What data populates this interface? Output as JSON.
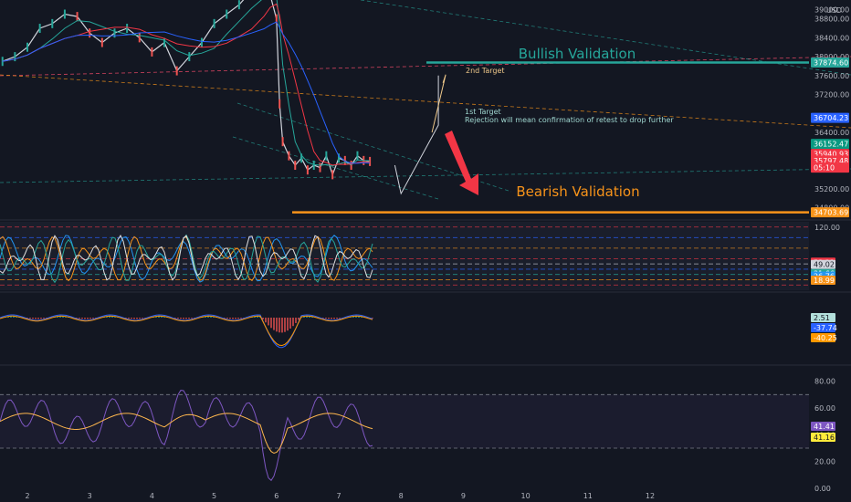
{
  "chart_data": {
    "type": "line",
    "currency": "USD",
    "colors": {
      "background": "#131722",
      "bullish": "#26a69a",
      "bearish": "#f7931a",
      "price_tag_red": "#f23645",
      "price_tag_blue": "#2962ff",
      "rsi": "#7e57c2",
      "rsi_ma": "#ffb74d"
    },
    "x_ticks": [
      "2",
      "3",
      "4",
      "5",
      "6",
      "7",
      "8",
      "9",
      "10",
      "11",
      "12"
    ],
    "price_axis": {
      "ticks": [
        39000,
        38800,
        38400,
        38000,
        37600,
        37200,
        36400,
        35200,
        34800
      ],
      "tick_labels": [
        "39000.00",
        "38800.00",
        "38400.00",
        "38000.00",
        "37600.00",
        "37200.00",
        "36400.00",
        "35200.00",
        "34800.00"
      ],
      "ylim": [
        34560,
        39200
      ]
    },
    "price_tags": [
      {
        "label": "37874.60",
        "value": 37874.6,
        "color": "#26a69a"
      },
      {
        "label": "36704.23",
        "value": 36704.23,
        "color": "#2962ff"
      },
      {
        "label": "36152.47",
        "value": 36152.47,
        "color": "#089981"
      },
      {
        "label": "35940.93",
        "value": 35940.93,
        "color": "#f23645"
      },
      {
        "label": "35797.48",
        "value": 35797.48,
        "color": "#f23645"
      },
      {
        "label": "05:10",
        "value": 35650,
        "color": "#f23645"
      },
      {
        "label": "34703.69",
        "value": 34703.69,
        "color": "#f7931a"
      }
    ],
    "annotations": {
      "bullish_label": "Bullish Validation",
      "bearish_label": "Bearish Validation",
      "second_target": "2nd Target",
      "first_target": "1st Target",
      "first_target_note": "Rejection will mean confirmation of retest to drop further"
    },
    "levels": {
      "bullish_validation": 37874.6,
      "bearish_validation": 34703.69
    },
    "price_series": {
      "x": [
        1.6,
        1.8,
        2.0,
        2.2,
        2.4,
        2.6,
        2.8,
        3.0,
        3.2,
        3.4,
        3.6,
        3.8,
        4.0,
        4.2,
        4.4,
        4.6,
        4.8,
        5.0,
        5.2,
        5.4,
        5.6,
        5.8,
        5.9,
        6.0,
        6.05,
        6.1,
        6.2,
        6.3,
        6.4,
        6.5,
        6.6,
        6.7,
        6.8,
        6.9,
        7.0,
        7.1,
        7.2,
        7.3,
        7.4,
        7.5
      ],
      "y": [
        37900,
        38000,
        38200,
        38600,
        38700,
        38900,
        38850,
        38500,
        38300,
        38500,
        38600,
        38400,
        38100,
        38300,
        37700,
        38000,
        38300,
        38700,
        38900,
        39100,
        39400,
        39600,
        39300,
        38800,
        37000,
        36200,
        35900,
        35700,
        35850,
        35600,
        35700,
        35650,
        35900,
        35500,
        35850,
        35800,
        35700,
        35900,
        35800,
        35780
      ]
    },
    "projection": {
      "x": [
        7.9,
        8.0,
        8.6,
        8.6
      ],
      "y": [
        35700,
        35100,
        36550,
        37600
      ]
    },
    "stochastic_panel": {
      "levels": [
        {
          "label": "120.00",
          "value": 120.0,
          "color": "#b2b5be"
        },
        {
          "label": "53.21",
          "value": 53.21,
          "color": "#f23645"
        },
        {
          "label": "49.02",
          "value": 49.02,
          "color": "#d1d4dc"
        },
        {
          "label": "31.66",
          "value": 31.66,
          "color": "#26a69a"
        },
        {
          "label": "26.76",
          "value": 26.76,
          "color": "#2196f3"
        },
        {
          "label": "18.99",
          "value": 18.99,
          "color": "#f7931a"
        }
      ],
      "ylim": [
        0,
        130
      ]
    },
    "macd_panel": {
      "labels": [
        {
          "label": "2.51",
          "value": 2.51,
          "color": "#b2dfdb"
        },
        {
          "label": "-37.74",
          "value": -37.74,
          "color": "#2962ff"
        },
        {
          "label": "-40.25",
          "value": -40.25,
          "color": "#ff9800"
        }
      ]
    },
    "rsi_panel": {
      "ticks": [
        80,
        60,
        40,
        20,
        0
      ],
      "tick_labels": [
        "80.00",
        "60.00",
        "40.00",
        "20.00",
        "0.00"
      ],
      "upper_band": 70,
      "lower_band": 30,
      "value_label": "41.41",
      "ma_label": "41.16",
      "ylim": [
        0,
        90
      ]
    }
  }
}
